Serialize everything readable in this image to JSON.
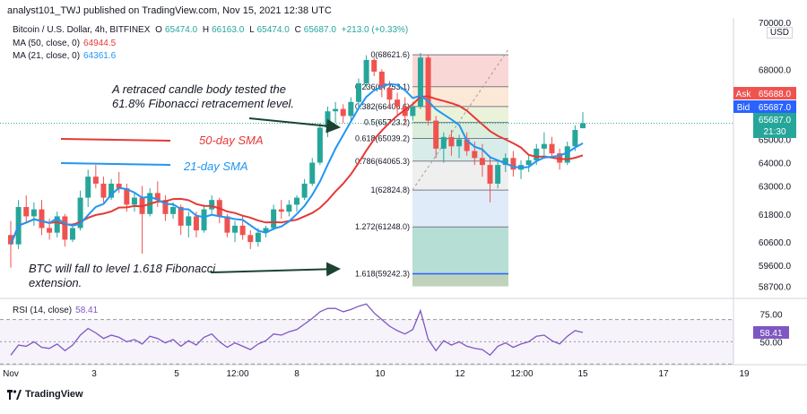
{
  "header": {
    "publisher": "analyst101_TWJ published on TradingView.com, Nov 15, 2021 12:38 UTC"
  },
  "symbol": {
    "title": "Bitcoin / U.S. Dollar, 4h, BITFINEX",
    "o_label": "O",
    "o_value": "65474.0",
    "h_label": "H",
    "h_value": "66163.0",
    "l_label": "L",
    "l_value": "65474.0",
    "c_label": "C",
    "c_value": "65687.0",
    "change": "+213.0 (+0.33%)"
  },
  "indicators": {
    "ma50_label": "MA (50, close, 0)",
    "ma50_value": "64944.5",
    "ma21_label": "MA (21, close, 0)",
    "ma21_value": "64361.6",
    "rsi_label": "RSI (14, close)",
    "rsi_value": "58.41"
  },
  "price_axis": {
    "currency": "USD",
    "ticks": [
      "70000.0",
      "68000.0",
      "65000.0",
      "64000.0",
      "63000.0",
      "61800.0",
      "60600.0",
      "59600.0",
      "58700.0"
    ],
    "ask_label": "Ask",
    "ask_value": "65688.0",
    "bid_label": "Bid",
    "bid_value": "65687.0",
    "last_value": "65687.0",
    "countdown": "21:30"
  },
  "rsi_axis": {
    "ticks": [
      "75.00",
      "50.00"
    ]
  },
  "time_axis": {
    "ticks": [
      "Nov",
      "3",
      "5",
      "12:00",
      "8",
      "10",
      "12",
      "12:00",
      "15",
      "17",
      "19"
    ]
  },
  "annotations": {
    "retrace_line1": "A retraced candle body tested the",
    "retrace_line2": "61.8% Fibonacci retracement level.",
    "sma50": "50-day SMA",
    "sma21": "21-day SMA",
    "fall_line1": "BTC will fall to  level 1.618 Fibonacci",
    "fall_line2": "extension."
  },
  "fib_levels": [
    {
      "label": "0(68621.6)",
      "price": 68621.6
    },
    {
      "label": "0.236(67253.1)",
      "price": 67253.1
    },
    {
      "label": "0.382(66406.6)",
      "price": 66406.6
    },
    {
      "label": "0.5(65723.2)",
      "price": 65723.2
    },
    {
      "label": "0.618(65039.2)",
      "price": 65039.2
    },
    {
      "label": "0.786(64065.3)",
      "price": 64065.3
    },
    {
      "label": "1(62824.8)",
      "price": 62824.8
    },
    {
      "label": "1.272(61248.0)",
      "price": 61248.0
    },
    {
      "label": "1.618(59242.3)",
      "price": 59242.3
    }
  ],
  "colors": {
    "up": "#26a69a",
    "down": "#ef5350",
    "ma50": "#e53935",
    "ma21": "#2196f3",
    "rsi": "#7e57c2",
    "arrow": "#1b4332"
  },
  "brand": "TradingView",
  "chart_data": {
    "type": "candlestick",
    "title": "Bitcoin / U.S. Dollar, 4h, BITFINEX",
    "ylim": [
      58300,
      70200
    ],
    "candles": [
      [
        60900,
        61500,
        59500,
        60500
      ],
      [
        60500,
        62400,
        60300,
        62100
      ],
      [
        62100,
        62600,
        61400,
        61700
      ],
      [
        61700,
        62300,
        61300,
        62000
      ],
      [
        62000,
        62400,
        60900,
        61200
      ],
      [
        61200,
        61600,
        60700,
        61000
      ],
      [
        61000,
        61900,
        60800,
        61700
      ],
      [
        61700,
        61800,
        60400,
        60700
      ],
      [
        60700,
        61400,
        60600,
        61200
      ],
      [
        61200,
        62800,
        61100,
        62500
      ],
      [
        62500,
        63700,
        62100,
        63400
      ],
      [
        63400,
        63900,
        62900,
        63100
      ],
      [
        63100,
        63400,
        62300,
        62500
      ],
      [
        62500,
        63300,
        62400,
        63100
      ],
      [
        63100,
        63600,
        62700,
        62900
      ],
      [
        62900,
        63100,
        61900,
        62200
      ],
      [
        62200,
        62700,
        61900,
        62500
      ],
      [
        62500,
        63000,
        60100,
        61800
      ],
      [
        61800,
        62900,
        61700,
        62700
      ],
      [
        62700,
        63200,
        62100,
        62400
      ],
      [
        62400,
        62600,
        61500,
        61800
      ],
      [
        61800,
        62300,
        61600,
        62100
      ],
      [
        62100,
        62200,
        60900,
        61300
      ],
      [
        61300,
        61900,
        60800,
        61700
      ],
      [
        61700,
        61900,
        60800,
        61100
      ],
      [
        61100,
        62200,
        61000,
        62000
      ],
      [
        62000,
        62600,
        61800,
        62400
      ],
      [
        62400,
        62500,
        61400,
        61700
      ],
      [
        61700,
        61800,
        60800,
        61000
      ],
      [
        61000,
        61500,
        60600,
        61300
      ],
      [
        61300,
        61700,
        60700,
        60900
      ],
      [
        60900,
        61100,
        60300,
        60600
      ],
      [
        60600,
        61200,
        60400,
        61000
      ],
      [
        61000,
        61300,
        60800,
        61200
      ],
      [
        61200,
        62200,
        61100,
        62000
      ],
      [
        62000,
        62400,
        61600,
        61900
      ],
      [
        61900,
        62400,
        61700,
        62200
      ],
      [
        62200,
        62600,
        61900,
        62500
      ],
      [
        62500,
        63300,
        62400,
        63100
      ],
      [
        63100,
        64200,
        63000,
        64000
      ],
      [
        64000,
        65700,
        63900,
        65500
      ],
      [
        65500,
        66400,
        65100,
        66200
      ],
      [
        66200,
        66600,
        65700,
        66300
      ],
      [
        66300,
        66500,
        65700,
        66000
      ],
      [
        66000,
        66800,
        65800,
        66600
      ],
      [
        66600,
        67600,
        66400,
        67400
      ],
      [
        67400,
        68600,
        67200,
        68400
      ],
      [
        68400,
        68500,
        67700,
        67900
      ],
      [
        67900,
        68000,
        66800,
        67200
      ],
      [
        67200,
        67500,
        66300,
        66700
      ],
      [
        66700,
        67000,
        66000,
        66400
      ],
      [
        66400,
        66800,
        65600,
        66000
      ],
      [
        66000,
        66600,
        65800,
        66400
      ],
      [
        66400,
        68700,
        66300,
        68500
      ],
      [
        68500,
        68600,
        65600,
        65800
      ],
      [
        65800,
        66000,
        64200,
        64600
      ],
      [
        64600,
        65300,
        64000,
        65100
      ],
      [
        65100,
        65400,
        64300,
        64700
      ],
      [
        64700,
        65200,
        64200,
        65000
      ],
      [
        65000,
        65300,
        64300,
        64500
      ],
      [
        64500,
        64900,
        63900,
        64200
      ],
      [
        64200,
        64800,
        63400,
        63900
      ],
      [
        63900,
        64300,
        62300,
        63100
      ],
      [
        63100,
        64100,
        62900,
        63900
      ],
      [
        63900,
        64400,
        63600,
        64200
      ],
      [
        64200,
        64500,
        63400,
        63700
      ],
      [
        63700,
        64100,
        63300,
        63900
      ],
      [
        63900,
        64300,
        63600,
        64100
      ],
      [
        64100,
        64800,
        63900,
        64600
      ],
      [
        64600,
        65300,
        64300,
        64800
      ],
      [
        64800,
        65100,
        64200,
        64400
      ],
      [
        64400,
        64600,
        63700,
        64000
      ],
      [
        64000,
        64900,
        63900,
        64700
      ],
      [
        64700,
        65600,
        64500,
        65400
      ],
      [
        65474,
        66163,
        65474,
        65687
      ]
    ],
    "rsi_ylim": [
      35,
      85
    ],
    "rsi": [
      38,
      47,
      46,
      50,
      45,
      44,
      48,
      42,
      47,
      56,
      62,
      58,
      53,
      56,
      54,
      50,
      52,
      48,
      55,
      53,
      49,
      52,
      46,
      51,
      47,
      54,
      57,
      50,
      45,
      49,
      46,
      43,
      48,
      51,
      57,
      56,
      59,
      61,
      66,
      71,
      77,
      80,
      80,
      77,
      79,
      82,
      84,
      76,
      70,
      64,
      60,
      57,
      61,
      78,
      52,
      42,
      51,
      47,
      50,
      46,
      44,
      43,
      38,
      46,
      49,
      45,
      48,
      50,
      55,
      56,
      51,
      48,
      55,
      60,
      58.41
    ]
  }
}
